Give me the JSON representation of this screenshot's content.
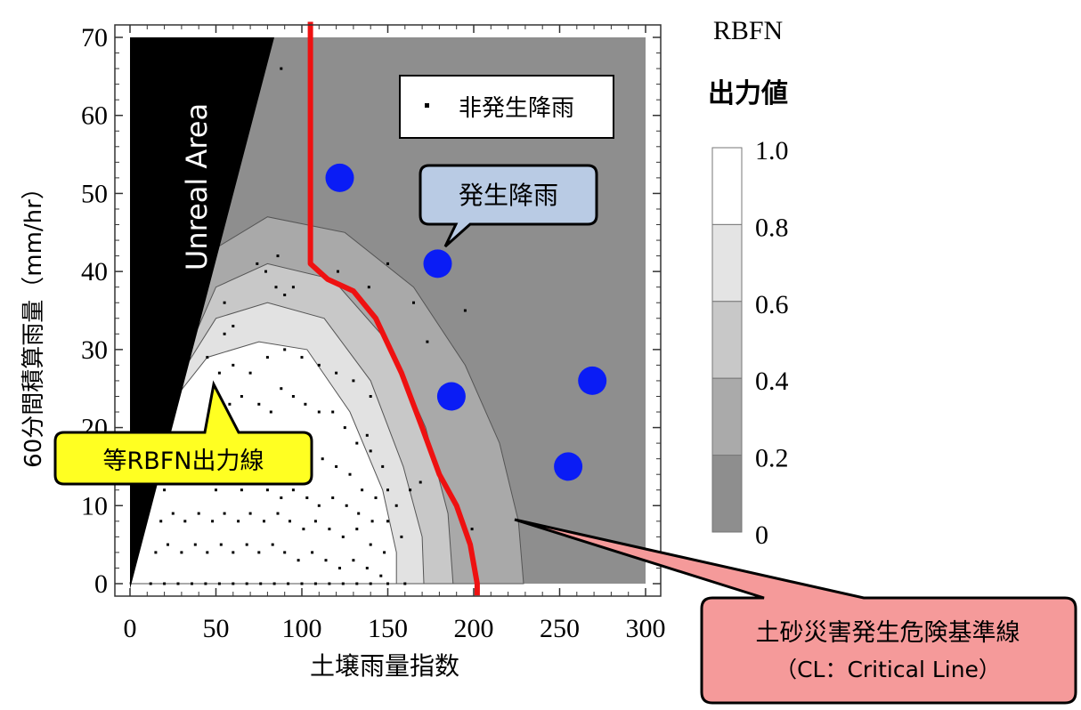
{
  "chart_data": {
    "type": "heatmap",
    "title": "",
    "xlabel": "土壌雨量指数",
    "ylabel": "60分間積算雨量（mm/hr）",
    "xlim": [
      0,
      300
    ],
    "ylim": [
      0,
      70
    ],
    "x_ticks": [
      0,
      50,
      100,
      150,
      200,
      250,
      300
    ],
    "y_ticks": [
      0,
      10,
      20,
      30,
      40,
      50,
      60,
      70
    ],
    "legend": {
      "title_line1": "RBFN",
      "title_line2": "出力値",
      "levels": [
        "1.0",
        "0.8",
        "0.6",
        "0.4",
        "0.2",
        "0"
      ],
      "colors": [
        "#ffffff",
        "#e4e4e4",
        "#c8c8c8",
        "#aaaaaa",
        "#8e8e8e",
        "#737373"
      ]
    },
    "unreal_area_label": "Unreal Area",
    "nonoccurrence_legend": "非発生降雨",
    "occurrence_callout": "発生降雨",
    "iso_line_callout": "等RBFN出力線",
    "critical_line_callout_line1": "土砂災害発生危険基準線",
    "critical_line_callout_line2": "（CL：Critical Line）",
    "contours": [
      {
        "level": "0.2-0.4",
        "color": "#a9a9a9",
        "points": [
          [
            37,
            33
          ],
          [
            50,
            43
          ],
          [
            80,
            47
          ],
          [
            125,
            45
          ],
          [
            165,
            38
          ],
          [
            195,
            28
          ],
          [
            215,
            18
          ],
          [
            226,
            8
          ],
          [
            229,
            0
          ]
        ]
      },
      {
        "level": "0.4-0.6",
        "color": "#c8c8c8",
        "points": [
          [
            34,
            30
          ],
          [
            50,
            38
          ],
          [
            80,
            41
          ],
          [
            118,
            39
          ],
          [
            150,
            31
          ],
          [
            172,
            20
          ],
          [
            185,
            9
          ],
          [
            188,
            0
          ]
        ]
      },
      {
        "level": "0.6-0.8",
        "color": "#e2e2e2",
        "points": [
          [
            30,
            27
          ],
          [
            50,
            34
          ],
          [
            80,
            36
          ],
          [
            113,
            34
          ],
          [
            140,
            26
          ],
          [
            159,
            15
          ],
          [
            170,
            6
          ],
          [
            171,
            0
          ]
        ]
      },
      {
        "level": "0.8-1.0",
        "color": "#ffffff",
        "points": [
          [
            27,
            24
          ],
          [
            45,
            29
          ],
          [
            75,
            31
          ],
          [
            103,
            30
          ],
          [
            128,
            22
          ],
          [
            147,
            12
          ],
          [
            155,
            4
          ],
          [
            155,
            0
          ]
        ]
      }
    ],
    "critical_line": [
      [
        105,
        72
      ],
      [
        105,
        41
      ],
      [
        115,
        39
      ],
      [
        130,
        37.5
      ],
      [
        143,
        34
      ],
      [
        158,
        27
      ],
      [
        170,
        20
      ],
      [
        180,
        14
      ],
      [
        190,
        10
      ],
      [
        198,
        5
      ],
      [
        202,
        0
      ],
      [
        202,
        -1.5
      ]
    ],
    "occurrence_points": [
      [
        122,
        52
      ],
      [
        179,
        41
      ],
      [
        187,
        24
      ],
      [
        269,
        26
      ],
      [
        255,
        15
      ]
    ],
    "nonoccurrence_points": [
      [
        88,
        66
      ],
      [
        74,
        41
      ],
      [
        79,
        40
      ],
      [
        85,
        38
      ],
      [
        90,
        37
      ],
      [
        95,
        38
      ],
      [
        86,
        42
      ],
      [
        121,
        40
      ],
      [
        139,
        38
      ],
      [
        150,
        41
      ],
      [
        165,
        36
      ],
      [
        173,
        31
      ],
      [
        195,
        35
      ],
      [
        169,
        13
      ],
      [
        163,
        12
      ],
      [
        199,
        7
      ],
      [
        55,
        36
      ],
      [
        60,
        33
      ],
      [
        55,
        32
      ],
      [
        45,
        29
      ],
      [
        52,
        27
      ],
      [
        60,
        28
      ],
      [
        70,
        27
      ],
      [
        80,
        29
      ],
      [
        90,
        30
      ],
      [
        100,
        29
      ],
      [
        110,
        28
      ],
      [
        120,
        27
      ],
      [
        130,
        26
      ],
      [
        140,
        24
      ],
      [
        138,
        19
      ],
      [
        58,
        23
      ],
      [
        65,
        24
      ],
      [
        75,
        23
      ],
      [
        82,
        22
      ],
      [
        88,
        25
      ],
      [
        95,
        24
      ],
      [
        102,
        23
      ],
      [
        110,
        22
      ],
      [
        118,
        22
      ],
      [
        125,
        20
      ],
      [
        132,
        18
      ],
      [
        140,
        17
      ],
      [
        147,
        15
      ],
      [
        150,
        12
      ],
      [
        155,
        10
      ],
      [
        45,
        18
      ],
      [
        55,
        19
      ],
      [
        65,
        17
      ],
      [
        72,
        18
      ],
      [
        80,
        17
      ],
      [
        90,
        16
      ],
      [
        97,
        18
      ],
      [
        104,
        17
      ],
      [
        112,
        16
      ],
      [
        120,
        15
      ],
      [
        128,
        14
      ],
      [
        135,
        12
      ],
      [
        143,
        11
      ],
      [
        150,
        8
      ],
      [
        158,
        6
      ],
      [
        20,
        12
      ],
      [
        28,
        13
      ],
      [
        35,
        14
      ],
      [
        42,
        13
      ],
      [
        50,
        12
      ],
      [
        58,
        13
      ],
      [
        65,
        12
      ],
      [
        72,
        13
      ],
      [
        80,
        12
      ],
      [
        88,
        11
      ],
      [
        95,
        12
      ],
      [
        103,
        11
      ],
      [
        110,
        10
      ],
      [
        118,
        11
      ],
      [
        126,
        10
      ],
      [
        133,
        9
      ],
      [
        141,
        8
      ],
      [
        18,
        8
      ],
      [
        25,
        9
      ],
      [
        32,
        8
      ],
      [
        40,
        9
      ],
      [
        48,
        8
      ],
      [
        55,
        9
      ],
      [
        63,
        8
      ],
      [
        70,
        9
      ],
      [
        78,
        8
      ],
      [
        86,
        9
      ],
      [
        93,
        8
      ],
      [
        101,
        7
      ],
      [
        108,
        8
      ],
      [
        116,
        7
      ],
      [
        124,
        6
      ],
      [
        132,
        7
      ],
      [
        140,
        5
      ],
      [
        148,
        4
      ],
      [
        15,
        4
      ],
      [
        22,
        5
      ],
      [
        30,
        4
      ],
      [
        38,
        5
      ],
      [
        45,
        4
      ],
      [
        53,
        5
      ],
      [
        60,
        4
      ],
      [
        68,
        5
      ],
      [
        75,
        4
      ],
      [
        83,
        5
      ],
      [
        90,
        4
      ],
      [
        98,
        3
      ],
      [
        106,
        4
      ],
      [
        114,
        3
      ],
      [
        122,
        2
      ],
      [
        130,
        3
      ],
      [
        138,
        2
      ],
      [
        146,
        1
      ],
      [
        12,
        0
      ],
      [
        20,
        0
      ],
      [
        28,
        0
      ],
      [
        36,
        0
      ],
      [
        44,
        0
      ],
      [
        52,
        0
      ],
      [
        60,
        0
      ],
      [
        68,
        0
      ],
      [
        76,
        0
      ],
      [
        84,
        0
      ],
      [
        92,
        0
      ],
      [
        100,
        0
      ],
      [
        108,
        0
      ],
      [
        116,
        0
      ],
      [
        124,
        0
      ],
      [
        132,
        0
      ],
      [
        140,
        0
      ],
      [
        150,
        0
      ],
      [
        160,
        0
      ]
    ]
  }
}
